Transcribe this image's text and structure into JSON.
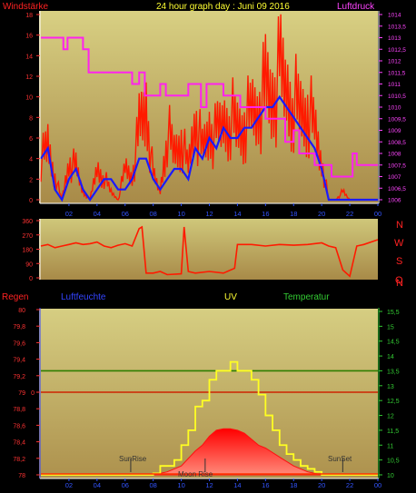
{
  "header": {
    "left_title": "Windstärke",
    "center_title": "24 hour graph day : Juni 09 2016",
    "right_title": "Luftdruck"
  },
  "bottom_header": {
    "regen": "Regen",
    "luftfeuchte": "Luftfeuchte",
    "uv": "UV",
    "temperatur": "Temperatur"
  },
  "compass": [
    "N",
    "W",
    "S",
    "O",
    "N"
  ],
  "annotations": {
    "sunrise": "SunRise",
    "moonrise": "Moon Rise",
    "sunset": "SunSet"
  },
  "colors": {
    "bg": "#000000",
    "panel_top": "#cfc77a",
    "panel_bottom": "#9a7a3e",
    "gust": "#ff1a00",
    "wind_avg": "#1a1aff",
    "pressure": "#ff22ee",
    "winddir": "#ff1a00",
    "rain": "#ff3300",
    "humidity_ref": "#cc2200",
    "uv": "#ffff22",
    "temperature": "#2e7d00",
    "red_fill": "#ff1010",
    "tick_red": "#ff3333",
    "tick_magenta": "#ff44ff",
    "tick_green": "#33cc33",
    "tick_x": "#3355ff"
  },
  "x_ticks": [
    "02",
    "04",
    "06",
    "08",
    "10",
    "12",
    "14",
    "16",
    "18",
    "20",
    "22",
    "00"
  ],
  "chart_data": [
    {
      "type": "line",
      "panel": "wind",
      "title": "24 hour graph day : Juni 09 2016",
      "xlabel": "",
      "ylabel_left": "Windstärke",
      "ylabel_right": "Luftdruck",
      "x_unit": "hour",
      "xlim": [
        0,
        24
      ],
      "ylim_left": [
        0,
        18
      ],
      "left_ticks": [
        "0",
        "2",
        "4",
        "6",
        "8",
        "10",
        "12",
        "14",
        "16",
        "18"
      ],
      "ylim_right": [
        1006,
        1014
      ],
      "right_ticks": [
        "1006",
        "1006,5",
        "1007",
        "1007,5",
        "1008",
        "1008,5",
        "1009",
        "1009,5",
        "1010",
        "1010,5",
        "1011",
        "1011,5",
        "1012",
        "1012,5",
        "1013",
        "1013,5",
        "1014"
      ],
      "series": [
        {
          "name": "",
          "axis": "left",
          "style": "gust-bars",
          "x": [
            0,
            0.5,
            1,
            1.5,
            2,
            2.5,
            3,
            3.5,
            4,
            4.5,
            5,
            5.5,
            6,
            6.5,
            7,
            7.5,
            8,
            8.5,
            9,
            9.5,
            10,
            10.5,
            11,
            11.5,
            12,
            12.5,
            13,
            13.5,
            14,
            14.5,
            15,
            15.5,
            16,
            16.5,
            17,
            17.5,
            18,
            18.5,
            19,
            19.5,
            20,
            20.5,
            21,
            21.5,
            22,
            22.5,
            23,
            23.5,
            24
          ],
          "values": [
            5,
            7,
            3,
            0,
            5,
            4,
            1,
            0,
            4,
            3,
            1,
            0,
            4,
            3,
            9,
            12,
            3,
            1,
            9,
            6,
            8,
            4,
            11,
            6,
            9,
            8,
            10,
            11,
            9,
            10,
            11,
            12,
            14,
            13,
            16,
            14,
            13,
            11,
            12,
            9,
            5,
            0,
            0,
            1,
            0,
            0,
            0,
            0,
            0
          ]
        },
        {
          "name": "",
          "axis": "left",
          "style": "line",
          "x": [
            0,
            0.5,
            1,
            1.5,
            2,
            2.5,
            3,
            3.5,
            4,
            4.5,
            5,
            5.5,
            6,
            6.5,
            7,
            7.5,
            8,
            8.5,
            9,
            9.5,
            10,
            10.5,
            11,
            11.5,
            12,
            12.5,
            13,
            13.5,
            14,
            14.5,
            15,
            15.5,
            16,
            16.5,
            17,
            17.5,
            18,
            18.5,
            19,
            19.5,
            20,
            20.5,
            21,
            21.5,
            22,
            22.5,
            23,
            23.5,
            24
          ],
          "values": [
            4,
            5,
            1,
            0,
            2,
            3,
            1,
            0,
            1,
            2,
            2,
            1,
            1,
            2,
            4,
            4,
            2,
            1,
            2,
            3,
            3,
            2,
            5,
            4,
            6,
            5,
            7,
            6,
            6,
            7,
            7,
            8,
            9,
            9,
            10,
            9,
            8,
            7,
            6,
            5,
            3,
            0,
            0,
            0,
            0,
            0,
            0,
            0,
            0
          ]
        },
        {
          "name": "",
          "axis": "right",
          "style": "step",
          "x": [
            0,
            1.6,
            1.9,
            3,
            3.4,
            6.5,
            7,
            7.4,
            8.5,
            8.9,
            10.5,
            11.4,
            11.8,
            13,
            14.2,
            16,
            17.4,
            18,
            18.4,
            19.5,
            20.7,
            22.2,
            22.5,
            23
          ],
          "values": [
            1013,
            1012.5,
            1013,
            1012.5,
            1011.5,
            1011,
            1011.5,
            1010.5,
            1011,
            1010.5,
            1011,
            1010,
            1011,
            1010.5,
            1010,
            1009.5,
            1008.5,
            1009,
            1008,
            1007.5,
            1007,
            1008,
            1007.5,
            1007.5
          ]
        }
      ]
    },
    {
      "type": "line",
      "panel": "wind-direction",
      "ylim": [
        0,
        360
      ],
      "left_ticks": [
        "0",
        "90",
        "180",
        "270",
        "360"
      ],
      "x": [
        0,
        0.5,
        1,
        1.5,
        2,
        2.5,
        3,
        3.5,
        4,
        4.5,
        5,
        5.5,
        6,
        6.5,
        7,
        7.2,
        7.5,
        8,
        8.5,
        9,
        10,
        10.2,
        10.5,
        11,
        12,
        13,
        13.8,
        14,
        15,
        16,
        17,
        18,
        19,
        20,
        20.5,
        21,
        21.5,
        22,
        22.5,
        23,
        24
      ],
      "values": [
        200,
        210,
        190,
        200,
        210,
        220,
        210,
        215,
        225,
        200,
        190,
        205,
        215,
        200,
        310,
        320,
        30,
        30,
        40,
        20,
        25,
        320,
        40,
        30,
        40,
        30,
        60,
        210,
        210,
        200,
        210,
        205,
        210,
        220,
        200,
        190,
        50,
        10,
        200,
        210,
        240
      ]
    },
    {
      "type": "line",
      "panel": "rain-humidity-uv-temperature",
      "xlim": [
        0,
        24
      ],
      "ylim_left": [
        78,
        80
      ],
      "left_ticks": [
        "78",
        "78,2",
        "78,4",
        "78,6",
        "78,8",
        "79",
        "79,2",
        "79,4",
        "79,6",
        "79,8",
        "80"
      ],
      "ylim_right": [
        10,
        15.5
      ],
      "right_ticks": [
        "10",
        "10,5",
        "11",
        "11,5",
        "12",
        "12,5",
        "13",
        "13,5",
        "14",
        "14,5",
        "15",
        "15,5"
      ],
      "regen_axis_label": "0",
      "series": [
        {
          "name": "",
          "axis": "left",
          "style": "hline",
          "values": [
            79
          ]
        },
        {
          "name": "",
          "axis": "right",
          "style": "hline",
          "values": [
            13.5
          ]
        },
        {
          "name": "",
          "axis": "right",
          "style": "line",
          "x": [
            0,
            6,
            7,
            8,
            8.5,
            9,
            9.5,
            10,
            10.5,
            11,
            11.5,
            12,
            12.5,
            13,
            13.5,
            14,
            14.5,
            15,
            15.5,
            16,
            16.5,
            17,
            17.5,
            18,
            18.5,
            19,
            19.5,
            20,
            24
          ],
          "values": [
            10,
            10,
            10,
            10.05,
            10.3,
            10.3,
            10.5,
            11,
            11.5,
            12.3,
            12.5,
            13.2,
            13.5,
            13.5,
            13.8,
            13.5,
            13.5,
            13.2,
            12.7,
            12,
            11.5,
            11,
            10.7,
            10.5,
            10.3,
            10.2,
            10.1,
            10,
            10
          ]
        },
        {
          "name": "",
          "axis": "right",
          "style": "area",
          "x": [
            8,
            9,
            10,
            11,
            11.5,
            12,
            12.5,
            13,
            13.5,
            14,
            14.5,
            15,
            15.5,
            16,
            17,
            18,
            19,
            20
          ],
          "values": [
            10,
            10.1,
            10.3,
            10.8,
            11,
            11.3,
            11.5,
            11.55,
            11.55,
            11.5,
            11.4,
            11.2,
            11,
            10.9,
            10.6,
            10.3,
            10.1,
            10
          ]
        }
      ],
      "markers": [
        {
          "label": "SunRise",
          "x": 6.4
        },
        {
          "label": "Moon Rise",
          "x": 11.7
        },
        {
          "label": "SunSet",
          "x": 21.5
        }
      ]
    }
  ]
}
